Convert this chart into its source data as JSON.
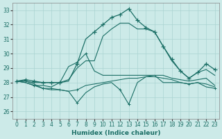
{
  "xlabel": "Humidex (Indice chaleur)",
  "xlim": [
    -0.5,
    23.5
  ],
  "ylim": [
    25.5,
    33.5
  ],
  "yticks": [
    26,
    27,
    28,
    29,
    30,
    31,
    32,
    33
  ],
  "xticks": [
    0,
    1,
    2,
    3,
    4,
    5,
    6,
    7,
    8,
    9,
    10,
    11,
    12,
    13,
    14,
    15,
    16,
    17,
    18,
    19,
    20,
    21,
    22,
    23
  ],
  "bg_color": "#cceae8",
  "grid_color": "#aad4d2",
  "line_color": "#1a6e65",
  "hours": [
    0,
    1,
    2,
    3,
    4,
    5,
    6,
    7,
    8,
    9,
    10,
    11,
    12,
    13,
    14,
    15,
    16,
    17,
    18,
    19,
    20,
    21,
    22,
    23
  ],
  "line1": [
    28.1,
    28.2,
    28.1,
    28.0,
    28.0,
    28.0,
    28.1,
    29.3,
    31.0,
    31.5,
    32.0,
    32.5,
    32.7,
    33.1,
    32.3,
    31.8,
    31.5,
    30.5,
    29.6,
    28.8,
    28.3,
    28.7,
    29.3,
    28.9
  ],
  "line1_markers": [
    0,
    1,
    2,
    3,
    4,
    5,
    7,
    9,
    10,
    11,
    12,
    13,
    14,
    15,
    16,
    17,
    18,
    19,
    20,
    21,
    22,
    23
  ],
  "line2": [
    28.1,
    28.1,
    28.0,
    28.0,
    28.0,
    28.0,
    28.2,
    29.0,
    29.5,
    29.5,
    31.2,
    31.7,
    32.1,
    32.1,
    31.7,
    31.7,
    31.5,
    30.5,
    29.5,
    28.8,
    28.3,
    28.7,
    28.9,
    28.5
  ],
  "line2_markers": [],
  "line3": [
    28.1,
    28.0,
    27.8,
    27.8,
    27.7,
    28.0,
    29.1,
    29.4,
    30.0,
    28.8,
    28.5,
    28.5,
    28.5,
    28.5,
    28.5,
    28.5,
    28.5,
    28.5,
    28.3,
    28.2,
    28.1,
    28.2,
    28.3,
    27.8
  ],
  "line3_markers": [
    0,
    2,
    5,
    7,
    8
  ],
  "line4": [
    28.1,
    28.1,
    27.9,
    27.6,
    27.6,
    27.5,
    27.4,
    27.5,
    27.8,
    27.9,
    28.0,
    28.1,
    28.2,
    28.3,
    28.3,
    28.4,
    28.4,
    28.3,
    28.2,
    28.0,
    27.9,
    28.0,
    27.9,
    27.7
  ],
  "line4_markers": [
    0,
    3,
    4,
    7
  ],
  "line5": [
    28.1,
    28.0,
    27.8,
    27.6,
    27.5,
    27.5,
    27.4,
    26.6,
    27.3,
    27.7,
    27.9,
    28.0,
    27.5,
    26.5,
    28.0,
    28.4,
    28.5,
    28.0,
    28.0,
    28.0,
    27.9,
    28.0,
    27.7,
    27.6
  ],
  "line5_markers": [
    0,
    3,
    5,
    7,
    12,
    13,
    20,
    23
  ]
}
